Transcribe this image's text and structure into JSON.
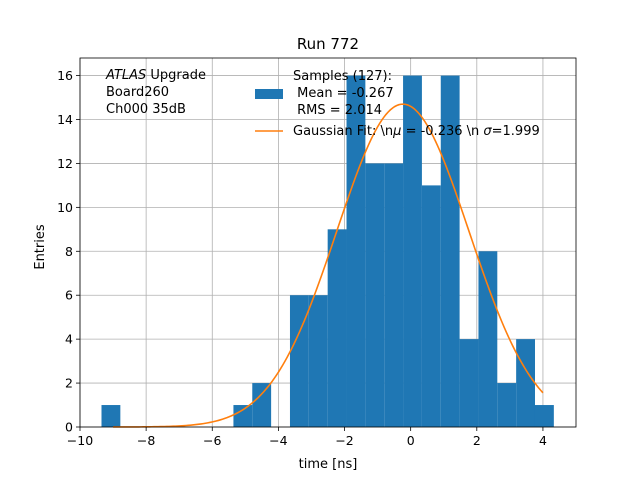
{
  "chart_data": {
    "type": "bar",
    "title": "Run 772",
    "xlabel": "time [ns]",
    "ylabel": "Entries",
    "xlim": [
      -10,
      5
    ],
    "ylim": [
      0,
      16.8
    ],
    "xticks": [
      -10,
      -8,
      -6,
      -4,
      -2,
      0,
      2,
      4
    ],
    "xtick_labels": [
      "−10",
      "−8",
      "−6",
      "−4",
      "−2",
      "0",
      "2",
      "4"
    ],
    "yticks": [
      0,
      2,
      4,
      6,
      8,
      10,
      12,
      14,
      16
    ],
    "ytick_labels": [
      "0",
      "2",
      "4",
      "6",
      "8",
      "10",
      "12",
      "14",
      "16"
    ],
    "grid": true,
    "legend_placement": "top-right",
    "annotation": {
      "lines": [
        "ATLAS Upgrade",
        "Board260",
        "Ch000 35dB"
      ],
      "italic_word": "ATLAS",
      "rest_of_first_line": " Upgrade"
    },
    "series": [
      {
        "name": "Samples (127):\n Mean = -0.267\n RMS = 2.014",
        "kind": "histogram",
        "color": "#1f77b4",
        "legend_lines": [
          "Samples (127):",
          " Mean = -0.267",
          " RMS = 2.014"
        ],
        "bin_width": 0.57,
        "bin_lefts": [
          -9.35,
          -8.78,
          -8.21,
          -7.64,
          -7.07,
          -6.5,
          -5.93,
          -5.36,
          -4.79,
          -4.22,
          -3.65,
          -3.08,
          -2.51,
          -1.94,
          -1.37,
          -0.8,
          -0.23,
          0.34,
          0.91,
          1.48,
          2.05,
          2.62,
          3.19,
          3.76
        ],
        "counts": [
          1,
          0,
          0,
          0,
          0,
          0,
          0,
          1,
          2,
          0,
          6,
          6,
          9,
          16,
          12,
          12,
          16,
          11,
          16,
          4,
          8,
          2,
          4,
          1
        ]
      },
      {
        "name": "Gaussian Fit: \\n $\\mu$ = -0.236 \\n $\\sigma$=1.999",
        "kind": "line",
        "color": "#ff7f0e",
        "legend_parts": [
          "Gaussian Fit: \\n",
          "μ",
          " = -0.236 \\n ",
          "σ",
          "=1.999"
        ],
        "mu": -0.236,
        "sigma": 1.999,
        "amplitude": 14.7,
        "x_range": [
          -9.0,
          4.0
        ]
      }
    ]
  }
}
